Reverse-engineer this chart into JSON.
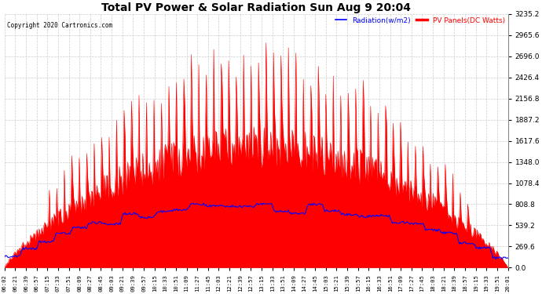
{
  "title": "Total PV Power & Solar Radiation Sun Aug 9 20:04",
  "copyright": "Copyright 2020 Cartronics.com",
  "legend_radiation": "Radiation(w/m2)",
  "legend_pv": "PV Panels(DC Watts)",
  "ymax": 3235.3,
  "ymin": 0.0,
  "ytick_interval": 269.6,
  "background_color": "#ffffff",
  "grid_color": "#c8c8c8",
  "pv_color": "#ff0000",
  "radiation_color": "#0000ff",
  "x_labels": [
    "06:02",
    "06:21",
    "06:39",
    "06:57",
    "07:15",
    "07:33",
    "07:51",
    "08:09",
    "08:27",
    "08:45",
    "09:03",
    "09:21",
    "09:39",
    "09:57",
    "10:15",
    "10:33",
    "10:51",
    "11:09",
    "11:27",
    "11:45",
    "12:03",
    "12:21",
    "12:39",
    "12:57",
    "13:15",
    "13:33",
    "13:51",
    "14:09",
    "14:27",
    "14:45",
    "15:03",
    "15:21",
    "15:39",
    "15:57",
    "16:15",
    "16:33",
    "16:51",
    "17:09",
    "17:27",
    "17:45",
    "18:03",
    "18:21",
    "18:39",
    "18:57",
    "19:15",
    "19:33",
    "19:51",
    "20:01"
  ],
  "figsize": [
    6.9,
    3.75
  ],
  "dpi": 100
}
